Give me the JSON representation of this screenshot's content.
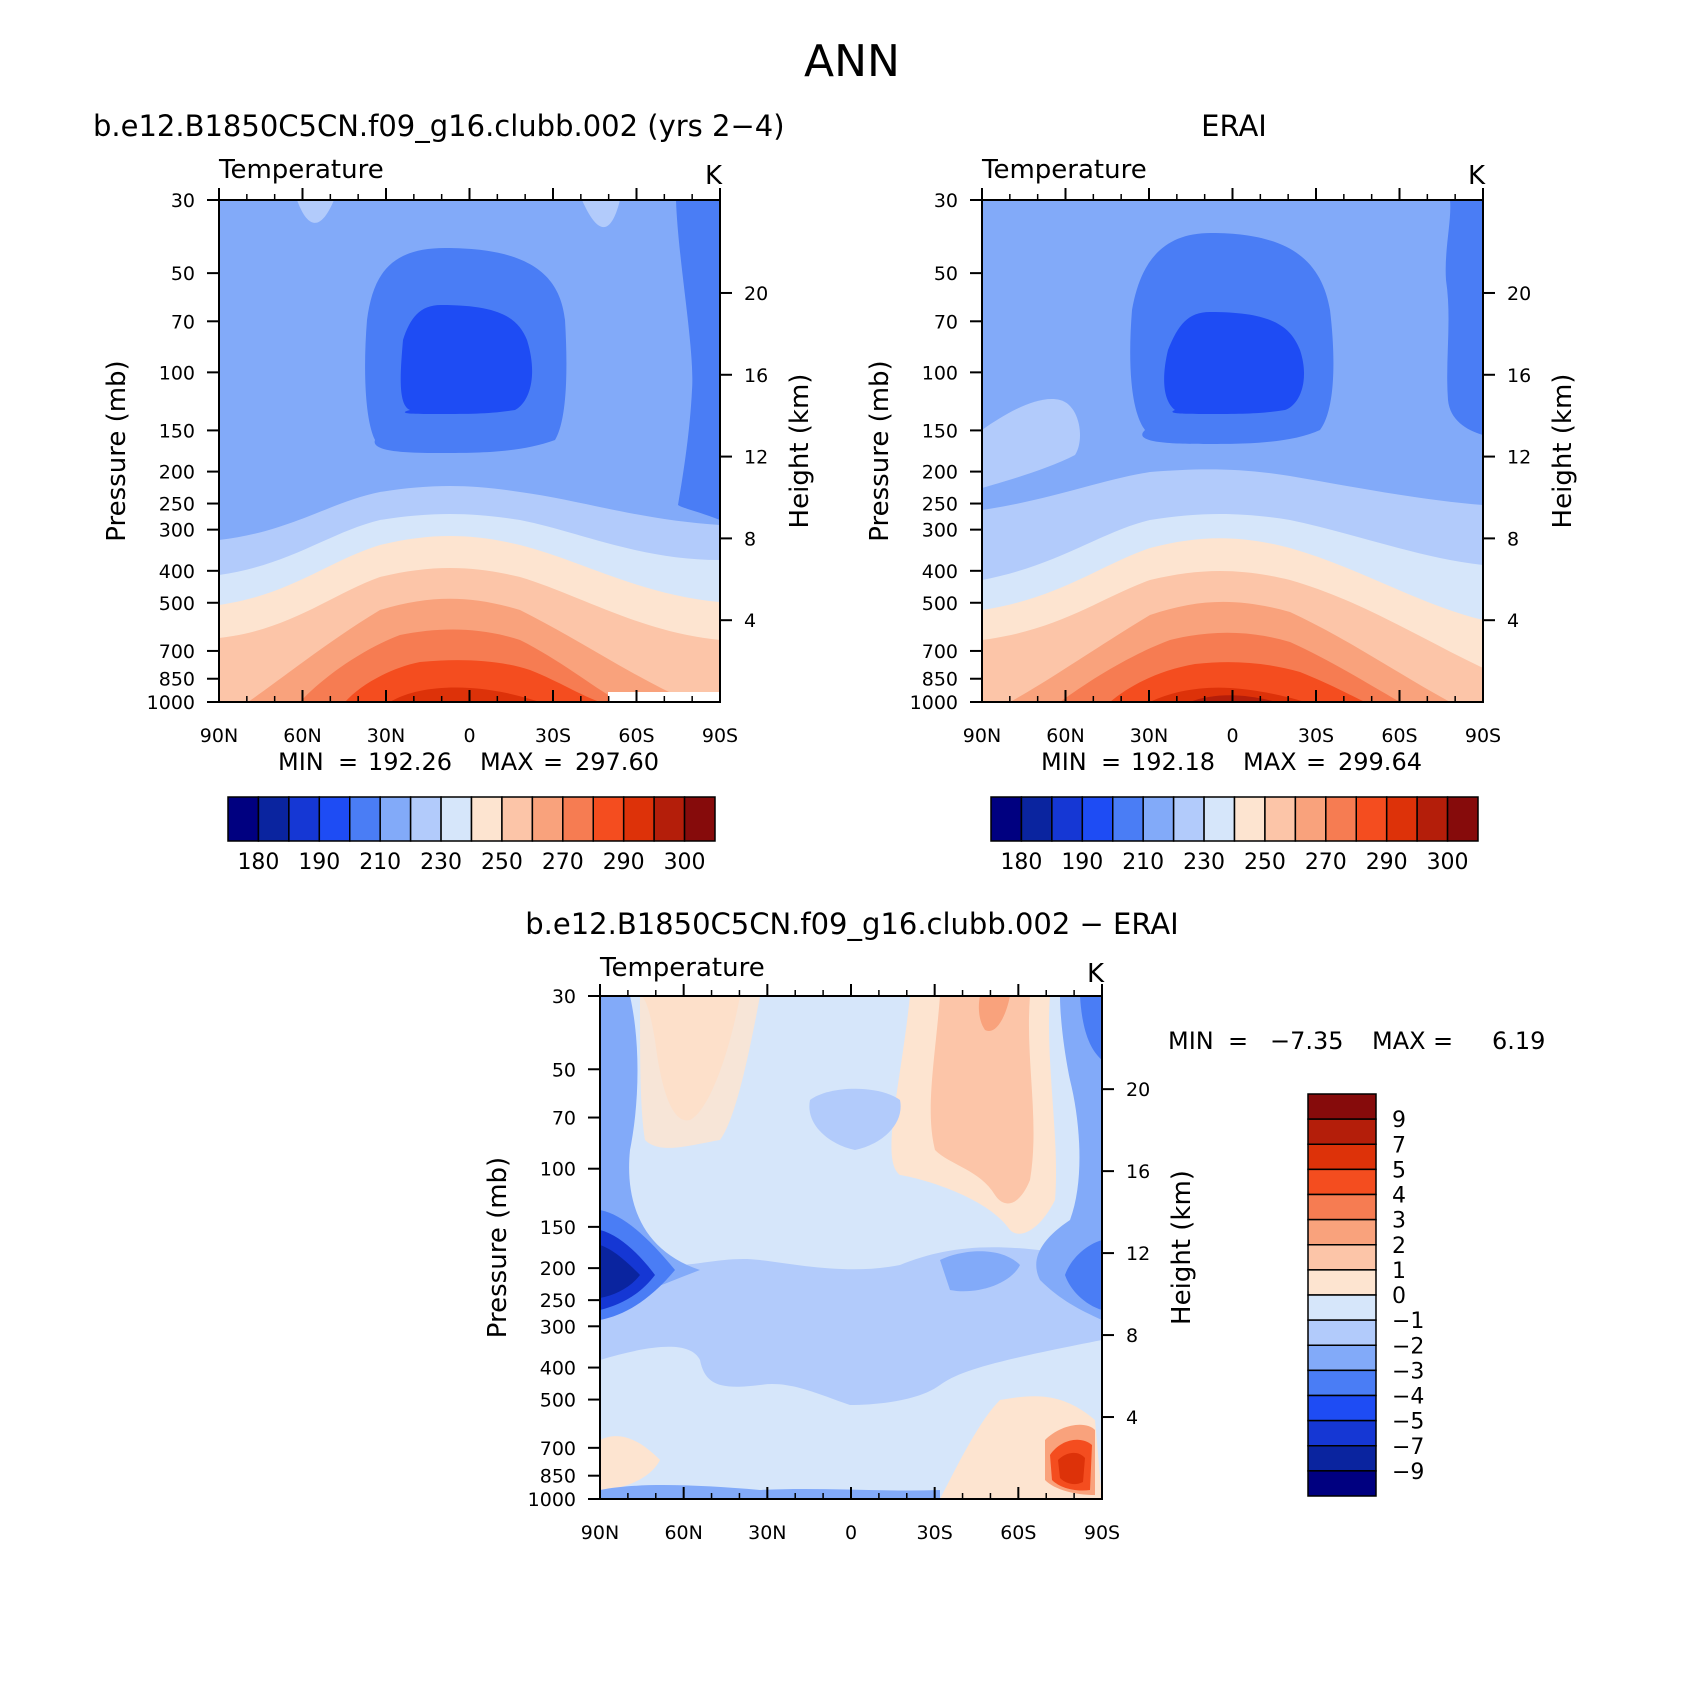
{
  "page": {
    "title": "ANN"
  },
  "colors": {
    "temperature_scale": [
      "#000080",
      "#0a249f",
      "#1537d4",
      "#1e4cf4",
      "#4a7df5",
      "#82aaf9",
      "#b2cbfb",
      "#d6e6fa",
      "#fde4d0",
      "#fcc5a8",
      "#f9a27c",
      "#f67c52",
      "#f44d1f",
      "#dd3209",
      "#b41e0a",
      "#860b0b"
    ],
    "difference_scale": [
      "#000080",
      "#0a249f",
      "#1537d4",
      "#1e4cf4",
      "#4a7df5",
      "#82aaf9",
      "#b2cbfb",
      "#d6e6fa",
      "#fde4d0",
      "#fcc5a8",
      "#f9a27c",
      "#f67c52",
      "#f44d1f",
      "#dd3209",
      "#b41e0a",
      "#860b0b"
    ]
  },
  "chart_data": [
    {
      "id": "model",
      "type": "heatmap",
      "title": "b.e12.B1850C5CN.f09_g16.clubb.002 (yrs 2−4)",
      "variable": "Temperature",
      "units": "K",
      "xlabel": "",
      "ylabel": "Pressure (mb)",
      "ylabel_right": "Height (km)",
      "x_ticks": [
        "90N",
        "60N",
        "30N",
        "0",
        "30S",
        "60S",
        "90S"
      ],
      "y_ticks": [
        "30",
        "50",
        "70",
        "100",
        "150",
        "200",
        "250",
        "300",
        "400",
        "500",
        "700",
        "850",
        "1000"
      ],
      "height_ticks": [
        "20",
        "16",
        "12",
        "8",
        "4"
      ],
      "stats": {
        "min_label": "MIN",
        "min": "192.26",
        "max_label": "MAX",
        "max": "297.60"
      },
      "colorbar_labels": [
        "180",
        "190",
        "210",
        "230",
        "250",
        "270",
        "290",
        "300"
      ]
    },
    {
      "id": "obs",
      "type": "heatmap",
      "title": "ERAI",
      "variable": "Temperature",
      "units": "K",
      "xlabel": "",
      "ylabel": "Pressure (mb)",
      "ylabel_right": "Height (km)",
      "x_ticks": [
        "90N",
        "60N",
        "30N",
        "0",
        "30S",
        "60S",
        "90S"
      ],
      "y_ticks": [
        "30",
        "50",
        "70",
        "100",
        "150",
        "200",
        "250",
        "300",
        "400",
        "500",
        "700",
        "850",
        "1000"
      ],
      "height_ticks": [
        "20",
        "16",
        "12",
        "8",
        "4"
      ],
      "stats": {
        "min_label": "MIN",
        "min": "192.18",
        "max_label": "MAX",
        "max": "299.64"
      },
      "colorbar_labels": [
        "180",
        "190",
        "210",
        "230",
        "250",
        "270",
        "290",
        "300"
      ]
    },
    {
      "id": "diff",
      "type": "heatmap",
      "title": "b.e12.B1850C5CN.f09_g16.clubb.002 − ERAI",
      "variable": "Temperature",
      "units": "K",
      "xlabel": "",
      "ylabel": "Pressure (mb)",
      "ylabel_right": "Height (km)",
      "x_ticks": [
        "90N",
        "60N",
        "30N",
        "0",
        "30S",
        "60S",
        "90S"
      ],
      "y_ticks": [
        "30",
        "50",
        "70",
        "100",
        "150",
        "200",
        "250",
        "300",
        "400",
        "500",
        "700",
        "850",
        "1000"
      ],
      "height_ticks": [
        "20",
        "16",
        "12",
        "8",
        "4"
      ],
      "stats": {
        "min_label": "MIN",
        "min": "−7.35",
        "max_label": "MAX",
        "max": "6.19"
      },
      "colorbar_labels": [
        "9",
        "7",
        "5",
        "4",
        "3",
        "2",
        "1",
        "0",
        "−1",
        "−2",
        "−3",
        "−4",
        "−5",
        "−7",
        "−9"
      ]
    }
  ]
}
